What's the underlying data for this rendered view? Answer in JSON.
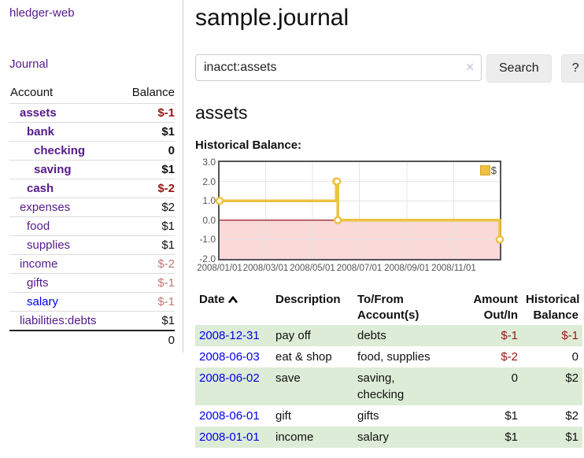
{
  "colors": {
    "accent_purple": "#551A8B",
    "link_blue": "#0000EE",
    "negative_red": "#941717",
    "dim_negative_red": "#C07878",
    "stripe_green": "#DDECD6",
    "button_gray": "#EDEDED"
  },
  "sidebar": {
    "brand": "hledger-web",
    "nav_journal": "Journal",
    "accounts_table": {
      "account_header": "Account",
      "balance_header": "Balance",
      "rows": [
        {
          "label": "assets",
          "depth": 1,
          "bold": true,
          "balance": "$-1",
          "balance_style": "neg"
        },
        {
          "label": "bank",
          "depth": 2,
          "bold": true,
          "balance": "$1",
          "balance_style": ""
        },
        {
          "label": "checking",
          "depth": 3,
          "bold": true,
          "balance": "0",
          "balance_style": ""
        },
        {
          "label": "saving",
          "depth": 3,
          "bold": true,
          "balance": "$1",
          "balance_style": ""
        },
        {
          "label": "cash",
          "depth": 2,
          "bold": true,
          "balance": "$-2",
          "balance_style": "neg"
        },
        {
          "label": "expenses",
          "depth": 1,
          "bold": false,
          "balance": "$2",
          "balance_style": ""
        },
        {
          "label": "food",
          "depth": 2,
          "bold": false,
          "balance": "$1",
          "balance_style": ""
        },
        {
          "label": "supplies",
          "depth": 2,
          "bold": false,
          "balance": "$1",
          "balance_style": ""
        },
        {
          "label": "income",
          "depth": 1,
          "bold": false,
          "balance": "$-2",
          "balance_style": "dim"
        },
        {
          "label": "gifts",
          "depth": 2,
          "bold": false,
          "balance": "$-1",
          "balance_style": "dim"
        },
        {
          "label": "salary",
          "depth": 2,
          "bold": false,
          "balance": "$-1",
          "balance_style": "dim",
          "unvisited": true
        },
        {
          "label": "liabilities:debts",
          "depth": 1,
          "bold": false,
          "balance": "$1",
          "balance_style": ""
        }
      ],
      "total": "0"
    }
  },
  "header": {
    "title": "sample.journal"
  },
  "search": {
    "query": "inacct:assets",
    "clear_icon": "✕",
    "search_label": "Search",
    "help_label": "?"
  },
  "account_page": {
    "heading": "assets",
    "chart_label": "Historical Balance:"
  },
  "chart_data": {
    "type": "line",
    "step": true,
    "title": "Historical Balance",
    "xlim": [
      "2008-01-01",
      "2008-12-31"
    ],
    "ylim": [
      -2,
      3
    ],
    "grid": true,
    "legend_position": "top-right",
    "series": [
      {
        "name": "$",
        "color": "#EDC240",
        "points": [
          [
            "2008-01-01",
            1
          ],
          [
            "2008-06-01",
            2
          ],
          [
            "2008-06-02",
            2
          ],
          [
            "2008-06-03",
            0
          ],
          [
            "2008-12-31",
            -1
          ]
        ]
      }
    ],
    "y_ticks": [
      {
        "value": 3,
        "label": "3.0"
      },
      {
        "value": 2,
        "label": "2.0"
      },
      {
        "value": 1,
        "label": "1.0"
      },
      {
        "value": 0,
        "label": "0.0"
      },
      {
        "value": -1,
        "label": "-1.0"
      },
      {
        "value": -2,
        "label": "-2.0"
      }
    ],
    "x_ticks": [
      {
        "date": "2008-01-01",
        "label": "2008/01/01"
      },
      {
        "date": "2008-03-01",
        "label": "2008/03/01"
      },
      {
        "date": "2008-05-01",
        "label": "2008/05/01"
      },
      {
        "date": "2008-07-01",
        "label": "2008/07/01"
      },
      {
        "date": "2008-09-01",
        "label": "2008/09/01"
      },
      {
        "date": "2008-11-01",
        "label": "2008/11/01"
      }
    ],
    "negative_region_color": "#FAD9D9",
    "zero_line_color": "#8B0000",
    "grid_color": "#E4E4E4",
    "border_color": "#545454"
  },
  "register_table": {
    "headers": {
      "date": "Date",
      "description": "Description",
      "accounts": "To/From Account(s)",
      "amount": "Amount Out/In",
      "balance": "Historical Balance"
    },
    "rows": [
      {
        "date": "2008-12-31",
        "description": "pay off",
        "accounts": "debts",
        "amount": "$-1",
        "amount_negative": true,
        "balance": "$-1",
        "balance_negative": true,
        "stripe": true
      },
      {
        "date": "2008-06-03",
        "description": "eat & shop",
        "accounts": "food, supplies",
        "amount": "$-2",
        "amount_negative": true,
        "balance": "0",
        "balance_negative": false,
        "stripe": false
      },
      {
        "date": "2008-06-02",
        "description": "save",
        "accounts": "saving,\nchecking",
        "amount": "0",
        "amount_negative": false,
        "balance": "$2",
        "balance_negative": false,
        "stripe": true
      },
      {
        "date": "2008-06-01",
        "description": "gift",
        "accounts": "gifts",
        "amount": "$1",
        "amount_negative": false,
        "balance": "$2",
        "balance_negative": false,
        "stripe": false
      },
      {
        "date": "2008-01-01",
        "description": "income",
        "accounts": "salary",
        "amount": "$1",
        "amount_negative": false,
        "balance": "$1",
        "balance_negative": false,
        "stripe": true
      }
    ]
  }
}
